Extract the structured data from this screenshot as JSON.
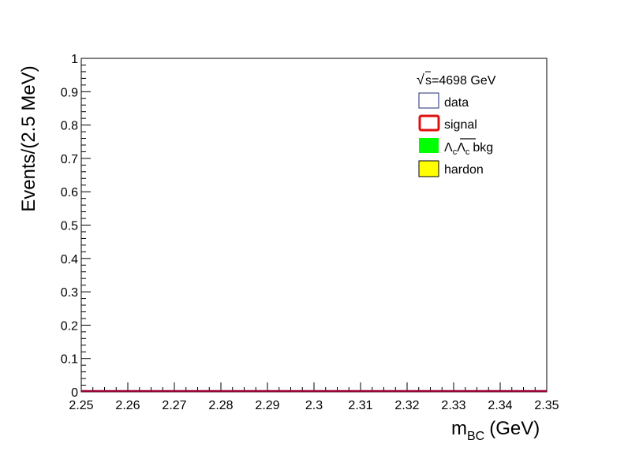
{
  "chart_data": {
    "type": "bar",
    "title": "",
    "xlabel": {
      "main": "m",
      "sub": "BC",
      "unit": "(GeV)"
    },
    "ylabel": "Events/(2.5 MeV)",
    "xlim": [
      2.25,
      2.35
    ],
    "ylim": [
      0,
      1
    ],
    "x_ticks": [
      "2.25",
      "2.26",
      "2.27",
      "2.28",
      "2.29",
      "2.3",
      "2.31",
      "2.32",
      "2.33",
      "2.34",
      "2.35"
    ],
    "y_ticks": [
      "0",
      "0.1",
      "0.2",
      "0.3",
      "0.4",
      "0.5",
      "0.6",
      "0.7",
      "0.8",
      "0.9",
      "1"
    ],
    "bin_width": 0.0025,
    "grid": false,
    "legend_position": "top-right",
    "annotation": {
      "sqrt": "√",
      "text": "s=4698 GeV"
    },
    "series": [
      {
        "name": "data",
        "style": "open-box",
        "color": "#1f2a7a",
        "values": []
      },
      {
        "name": "signal",
        "style": "line",
        "color": "#e01010",
        "values": []
      },
      {
        "name": "bkg",
        "name_parts": {
          "lam1": "Λ",
          "sub1": "c",
          "lam2": "Λ",
          "sub2": "c",
          "rest": "bkg"
        },
        "style": "filled",
        "color": "#00ff00",
        "values": []
      },
      {
        "name": "hardon",
        "style": "filled",
        "color": "#ffff00",
        "values": []
      }
    ],
    "baseline_color": "#990033"
  }
}
